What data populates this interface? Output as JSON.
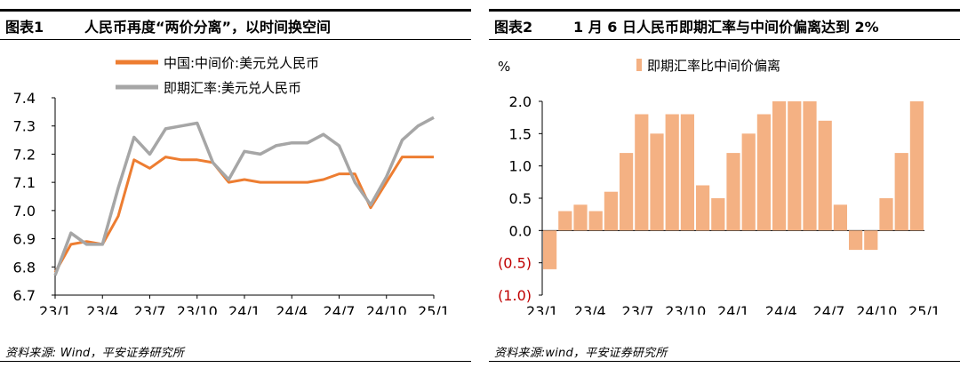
{
  "chart_data": [
    {
      "type": "line",
      "figure_label": "图表1",
      "title": "人民币再度“两价分离”，以时间换空间",
      "source": "资料来源: Wind，平安证券研究所",
      "ylim": [
        6.7,
        7.4
      ],
      "yticks": [
        "6.7",
        "6.8",
        "6.9",
        "7.0",
        "7.1",
        "7.2",
        "7.3",
        "7.4"
      ],
      "xlabels": [
        "23/1",
        "23/4",
        "23/7",
        "23/10",
        "24/1",
        "24/4",
        "24/7",
        "24/10",
        "25/1"
      ],
      "legend": [
        "中国:中间价:美元兑人民币",
        "即期汇率:美元兑人民币"
      ],
      "legend_position": "top-center",
      "colors": {
        "central_parity": "#ED7D31",
        "spot": "#A6A6A6"
      },
      "x": [
        "2023-01",
        "2023-02",
        "2023-03",
        "2023-04",
        "2023-05",
        "2023-06",
        "2023-07",
        "2023-08",
        "2023-09",
        "2023-10",
        "2023-11",
        "2023-12",
        "2024-01",
        "2024-02",
        "2024-03",
        "2024-04",
        "2024-05",
        "2024-06",
        "2024-07",
        "2024-08",
        "2024-09",
        "2024-10",
        "2024-11",
        "2024-12",
        "2025-01"
      ],
      "series": [
        {
          "name": "中国:中间价:美元兑人民币",
          "values": [
            6.78,
            6.88,
            6.89,
            6.88,
            6.98,
            7.18,
            7.15,
            7.19,
            7.18,
            7.18,
            7.17,
            7.1,
            7.11,
            7.1,
            7.1,
            7.1,
            7.1,
            7.11,
            7.13,
            7.13,
            7.01,
            7.1,
            7.19,
            7.19,
            7.19
          ]
        },
        {
          "name": "即期汇率:美元兑人民币",
          "values": [
            6.77,
            6.92,
            6.88,
            6.88,
            7.08,
            7.26,
            7.2,
            7.29,
            7.3,
            7.31,
            7.17,
            7.11,
            7.21,
            7.2,
            7.23,
            7.24,
            7.24,
            7.27,
            7.23,
            7.1,
            7.02,
            7.12,
            7.25,
            7.3,
            7.33
          ]
        }
      ]
    },
    {
      "type": "bar",
      "figure_label": "图表2",
      "title": "1 月 6 日人民币即期汇率与中间价偏离达到 2%",
      "source": "资料来源:wind，平安证券研究所",
      "ylim": [
        -1.0,
        2.0
      ],
      "yticks": [
        "(1.0)",
        "(0.5)",
        "0.0",
        "0.5",
        "1.0",
        "1.5",
        "2.0"
      ],
      "negative_format": "parentheses",
      "xlabels": [
        "23/1",
        "23/4",
        "23/7",
        "23/10",
        "24/1",
        "24/4",
        "24/7",
        "24/10",
        "25/1"
      ],
      "legend": [
        "即期汇率比中间价偏离"
      ],
      "legend_position": "top-center",
      "colors": {
        "bars": "#F4B183",
        "negative_ticks": "#C00000"
      },
      "x": [
        "2023-01",
        "2023-02",
        "2023-03",
        "2023-04",
        "2023-05",
        "2023-06",
        "2023-07",
        "2023-08",
        "2023-09",
        "2023-10",
        "2023-11",
        "2023-12",
        "2024-01",
        "2024-02",
        "2024-03",
        "2024-04",
        "2024-05",
        "2024-06",
        "2024-07",
        "2024-08",
        "2024-09",
        "2024-10",
        "2024-11",
        "2024-12",
        "2025-01"
      ],
      "series": [
        {
          "name": "即期汇率比中间价偏离",
          "values": [
            -0.6,
            0.3,
            0.4,
            0.3,
            0.6,
            1.2,
            1.8,
            1.5,
            1.8,
            1.8,
            0.7,
            0.5,
            1.2,
            1.5,
            1.8,
            2.0,
            2.0,
            2.0,
            1.7,
            0.4,
            -0.3,
            -0.3,
            0.5,
            1.2,
            2.0
          ]
        }
      ]
    }
  ]
}
